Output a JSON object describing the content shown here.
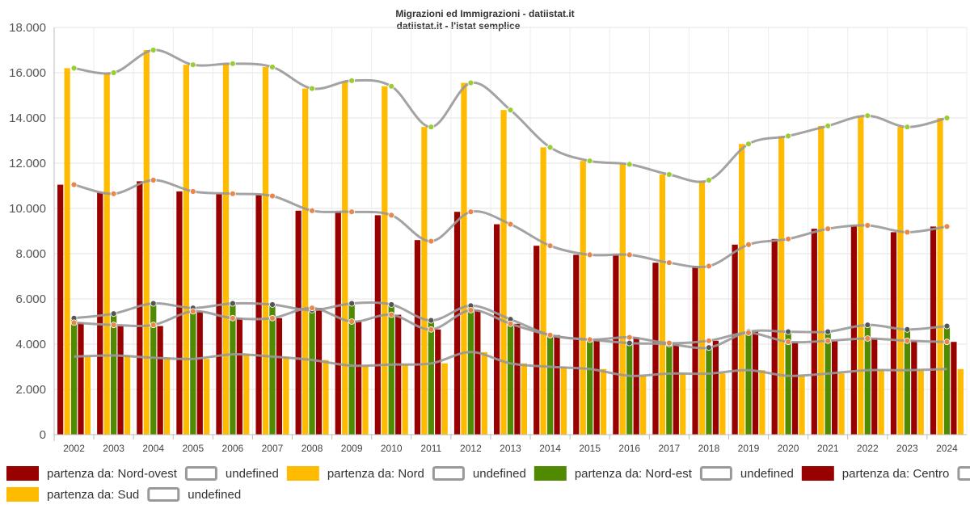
{
  "chart_data": {
    "type": "bar",
    "title": "Migrazioni ed Immigrazioni - datiistat.it",
    "subtitle": "datiistat.it - l'istat semplice",
    "categories": [
      "2002",
      "2003",
      "2004",
      "2005",
      "2006",
      "2007",
      "2008",
      "2009",
      "2010",
      "2011",
      "2012",
      "2013",
      "2014",
      "2015",
      "2016",
      "2017",
      "2018",
      "2019",
      "2020",
      "2021",
      "2022",
      "2023",
      "2024"
    ],
    "y_ticks": [
      "0",
      "2.000",
      "4.000",
      "6.000",
      "8.000",
      "10.000",
      "12.000",
      "14.000",
      "16.000",
      "18.000"
    ],
    "ylim": [
      0,
      18000
    ],
    "grid": true,
    "legend_position": "bottom",
    "bar_series": [
      {
        "name": "partenza da: Nord-ovest",
        "color": "#990000",
        "values": [
          11050,
          10700,
          11200,
          10750,
          10650,
          10600,
          9900,
          9850,
          9700,
          8600,
          9850,
          9300,
          8350,
          7950,
          7950,
          7600,
          7450,
          8400,
          8650,
          9100,
          9250,
          8950,
          9200
        ]
      },
      {
        "name": "partenza da: Nord",
        "color": "#ffbb00",
        "values": [
          16200,
          16000,
          17000,
          16350,
          16400,
          16250,
          15300,
          15600,
          15400,
          13600,
          15550,
          14350,
          12700,
          12100,
          11950,
          11500,
          11200,
          12850,
          13200,
          13650,
          14050,
          13600,
          14000
        ]
      },
      {
        "name": "partenza da: Nord-est",
        "color": "#4f8a00",
        "values": [
          5150,
          5400,
          5800,
          5650,
          5800,
          5750,
          5500,
          5800,
          5750,
          5050,
          5700,
          5100,
          4400,
          4200,
          4050,
          4000,
          3850,
          4550,
          4550,
          4550,
          4850,
          4700,
          4800
        ]
      },
      {
        "name": "partenza da: Centro",
        "color": "#990000",
        "values": [
          4950,
          4800,
          4800,
          5450,
          5150,
          5150,
          5600,
          5000,
          5300,
          4650,
          5500,
          4900,
          4400,
          4200,
          4300,
          4000,
          4150,
          4550,
          4100,
          4150,
          4250,
          4150,
          4100
        ]
      },
      {
        "name": "partenza da: Sud",
        "color": "#ffbb00",
        "values": [
          3450,
          3500,
          3400,
          3350,
          3550,
          3450,
          3300,
          3050,
          3100,
          3150,
          3650,
          3150,
          3000,
          2900,
          2600,
          2700,
          2700,
          2850,
          2600,
          2700,
          2850,
          2850,
          2900
        ]
      }
    ],
    "line_series": [
      {
        "name": "undefined",
        "color": "#999999",
        "marker": "#e8874a",
        "values": [
          11050,
          10650,
          11250,
          10750,
          10650,
          10550,
          9900,
          9850,
          9700,
          8550,
          9850,
          9300,
          8350,
          7950,
          7950,
          7600,
          7450,
          8400,
          8650,
          9100,
          9250,
          8950,
          9200
        ]
      },
      {
        "name": "undefined",
        "color": "#999999",
        "marker": "#9acd32",
        "values": [
          16200,
          16000,
          17000,
          16350,
          16400,
          16250,
          15300,
          15650,
          15400,
          13600,
          15550,
          14350,
          12700,
          12100,
          11950,
          11500,
          11250,
          12850,
          13200,
          13650,
          14100,
          13600,
          14000
        ]
      },
      {
        "name": "undefined",
        "color": "#999999",
        "marker": "#555555",
        "values": [
          5150,
          5350,
          5800,
          5600,
          5800,
          5750,
          5500,
          5800,
          5750,
          5050,
          5700,
          5100,
          4400,
          4200,
          4050,
          4000,
          3850,
          4550,
          4550,
          4550,
          4850,
          4650,
          4800
        ]
      },
      {
        "name": "undefined",
        "color": "#999999",
        "marker": "#e8874a",
        "values": [
          4950,
          4850,
          4850,
          5450,
          5150,
          5150,
          5600,
          5000,
          5300,
          4650,
          5500,
          4900,
          4400,
          4200,
          4300,
          4050,
          4150,
          4500,
          4100,
          4150,
          4250,
          4150,
          4100
        ]
      },
      {
        "name": "undefined",
        "color": "#999999",
        "marker": null,
        "values": [
          3450,
          3500,
          3400,
          3350,
          3550,
          3450,
          3300,
          3050,
          3100,
          3150,
          3650,
          3150,
          3000,
          2900,
          2600,
          2700,
          2700,
          2850,
          2600,
          2700,
          2850,
          2850,
          2900
        ]
      }
    ],
    "legend": [
      {
        "label": "partenza da: Nord-ovest",
        "style": "filled",
        "color": "#990000"
      },
      {
        "label": "undefined",
        "style": "outline",
        "color": "#999999"
      },
      {
        "label": "partenza da: Nord",
        "style": "filled",
        "color": "#ffbb00"
      },
      {
        "label": "undefined",
        "style": "outline",
        "color": "#999999"
      },
      {
        "label": "partenza da: Nord-est",
        "style": "filled",
        "color": "#4f8a00"
      },
      {
        "label": "undefined",
        "style": "outline",
        "color": "#999999"
      },
      {
        "label": "partenza da: Centro",
        "style": "filled",
        "color": "#990000"
      },
      {
        "label": "undefined",
        "style": "outline",
        "color": "#999999"
      },
      {
        "label": "partenza da: Sud",
        "style": "filled",
        "color": "#ffbb00"
      },
      {
        "label": "undefined",
        "style": "outline",
        "color": "#999999"
      }
    ]
  }
}
